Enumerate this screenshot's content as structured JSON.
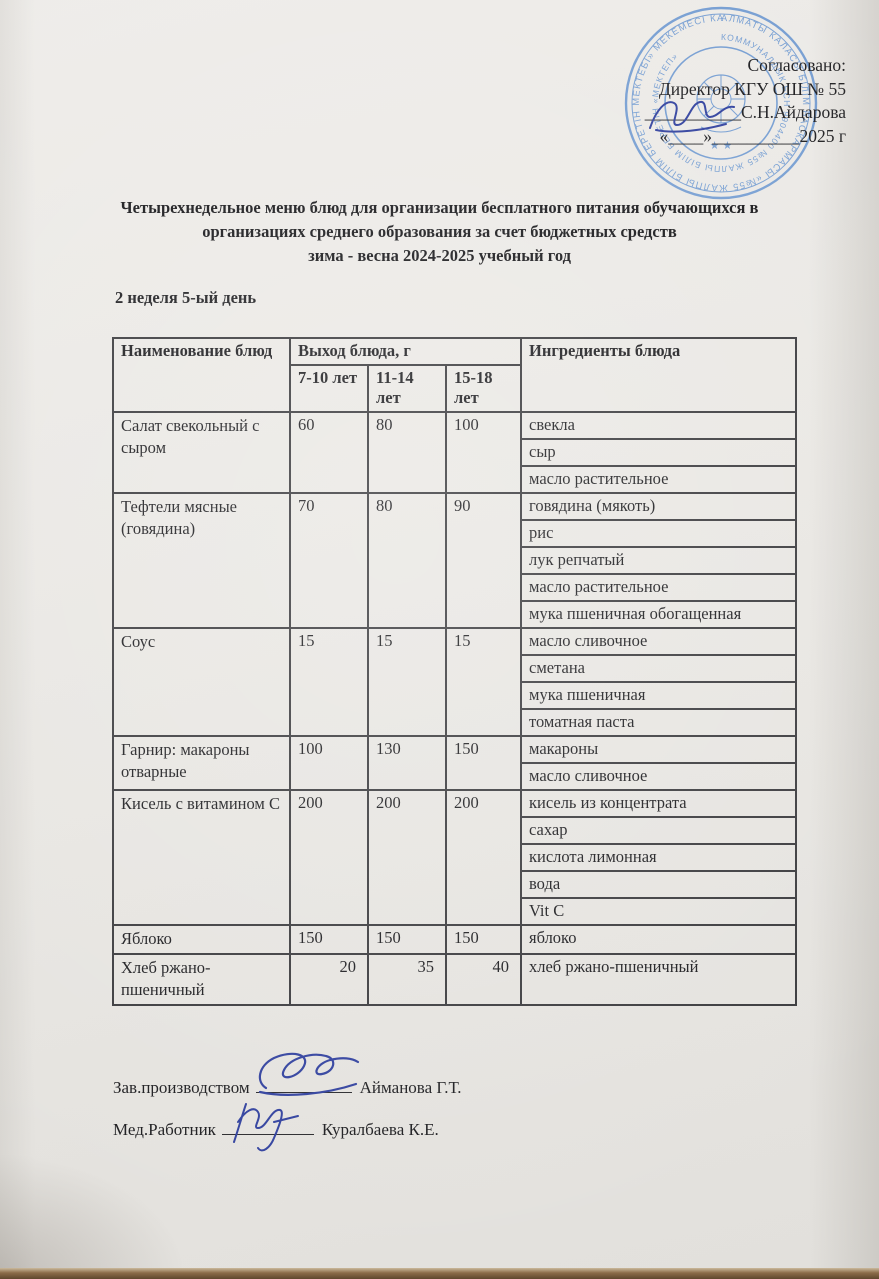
{
  "approval": {
    "agreed": "Согласовано:",
    "director": "Директор КГУ ОШ № 55",
    "sign_blank": "___________",
    "director_name": "С.Н.Айдарова",
    "date_line": "«____»__________2025 г"
  },
  "stamp": {
    "ring_outer": "АЛМАТЫ КАЛАСЫ БІЛІМ БАСКАРМАСЫ «№55 ЖАЛПЫ БІЛІМ БЕРЕТІН МЕКТЕБІ» МЕКЕМЕСІ КАЗАКСТАН РЕСПУБЛИКАСЫ ",
    "ring_inner": "КОММУНАЛДЫК БСН 9904400 №55 ЖАЛПЫ БІЛІМ БЕРЕТІН «МЕКТЕП» ",
    "stars": "★ ★",
    "ink_color": "#5d8ece"
  },
  "title": {
    "line1": "Четырехнедельное меню блюд для организации бесплатного питания обучающихся в",
    "line2": "организациях среднего образования за счет бюджетных средств",
    "line3": "зима - весна 2024-2025 учебный год"
  },
  "subtitle": "2 неделя 5-ый день",
  "table": {
    "col_name_header": "Наименование блюд",
    "col_output_header": "Выход блюда, г",
    "col_ingredients_header": "Ингредиенты блюда",
    "age_groups": [
      "7-10 лет",
      "11-14 лет",
      "15-18 лет"
    ],
    "rows": [
      {
        "name": "Салат свекольный с сыром",
        "portions": [
          "60",
          "80",
          "100"
        ],
        "ingredients": [
          "свекла",
          "сыр",
          "масло растительное"
        ],
        "portion_align": "center"
      },
      {
        "name": "Тефтели мясные (говядина)",
        "portions": [
          "70",
          "80",
          "90"
        ],
        "ingredients": [
          "говядина (мякоть)",
          "рис",
          "лук репчатый",
          "масло растительное",
          "мука пшеничная обогащенная"
        ],
        "portion_align": "center"
      },
      {
        "name": "Соус",
        "portions": [
          "15",
          "15",
          "15"
        ],
        "ingredients": [
          "масло сливочное",
          "сметана",
          "мука пшеничная",
          "томатная паста"
        ],
        "portion_align": "center"
      },
      {
        "name": "Гарнир: макароны отварные",
        "portions": [
          "100",
          "130",
          "150"
        ],
        "ingredients": [
          "макароны",
          "масло сливочное"
        ],
        "portion_align": "center"
      },
      {
        "name": "Кисель с витамином С",
        "portions": [
          "200",
          "200",
          "200"
        ],
        "ingredients": [
          "кисель из концентрата",
          "сахар",
          "кислота лимонная",
          "вода",
          "Vit C"
        ],
        "portion_align": "center"
      },
      {
        "name": "Яблоко",
        "portions": [
          "150",
          "150",
          "150"
        ],
        "ingredients": [
          "яблоко"
        ],
        "portion_align": "center"
      },
      {
        "name": "Хлеб ржано-пшеничный",
        "portions": [
          "20",
          "35",
          "40"
        ],
        "ingredients": [
          "хлеб ржано-пшеничный"
        ],
        "portion_align": "right"
      }
    ]
  },
  "footer": {
    "production_label": "Зав.производством",
    "production_name": "Айманова Г.Т.",
    "medical_label": "Мед.Работник",
    "medical_name": "Куралбаева К.Е."
  }
}
